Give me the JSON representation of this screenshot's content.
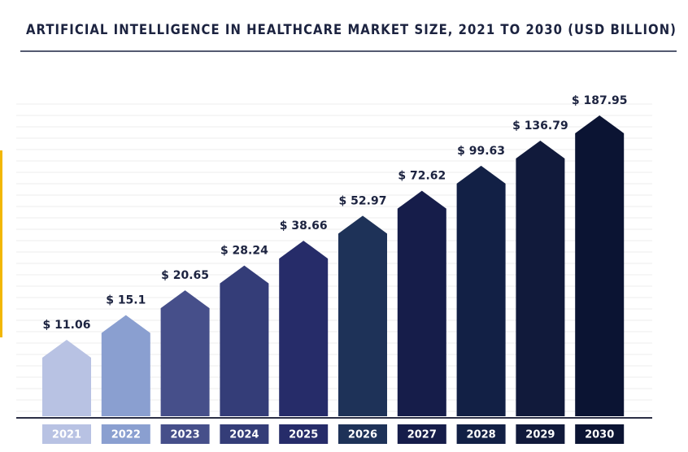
{
  "chart_data": {
    "type": "bar",
    "title": "ARTIFICIAL INTELLIGENCE IN HEALTHCARE MARKET SIZE, 2021 TO 2030 (USD BILLION)",
    "categories": [
      "2021",
      "2022",
      "2023",
      "2024",
      "2025",
      "2026",
      "2027",
      "2028",
      "2029",
      "2030"
    ],
    "values": [
      11.06,
      15.1,
      20.65,
      28.24,
      38.66,
      52.97,
      72.62,
      99.63,
      136.79,
      187.95
    ],
    "value_labels": [
      "$ 11.06",
      "$ 15.1",
      "$ 20.65",
      "$ 28.24",
      "$ 38.66",
      "$ 52.97",
      "$ 72.62",
      "$ 99.63",
      "$ 136.79",
      "$ 187.95"
    ],
    "colors": [
      "#b8c2e3",
      "#8a9fd0",
      "#464f8a",
      "#343d78",
      "#262c69",
      "#1e3258",
      "#161d4a",
      "#122045",
      "#111a3b",
      "#0b1433"
    ],
    "log_scale": true
  }
}
